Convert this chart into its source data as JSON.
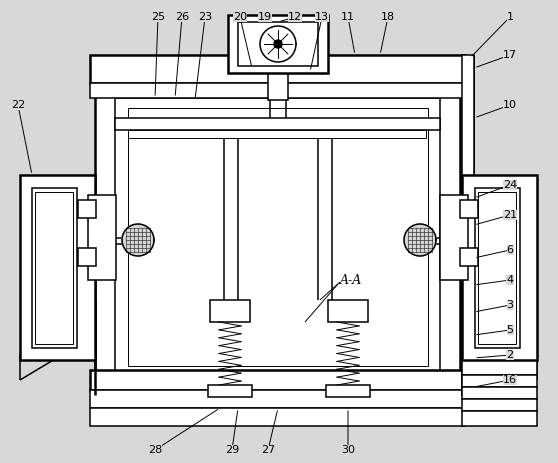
{
  "fig_width": 5.58,
  "fig_height": 4.63,
  "dpi": 100,
  "bg_color": "#d8d8d8",
  "line_color": "#000000"
}
